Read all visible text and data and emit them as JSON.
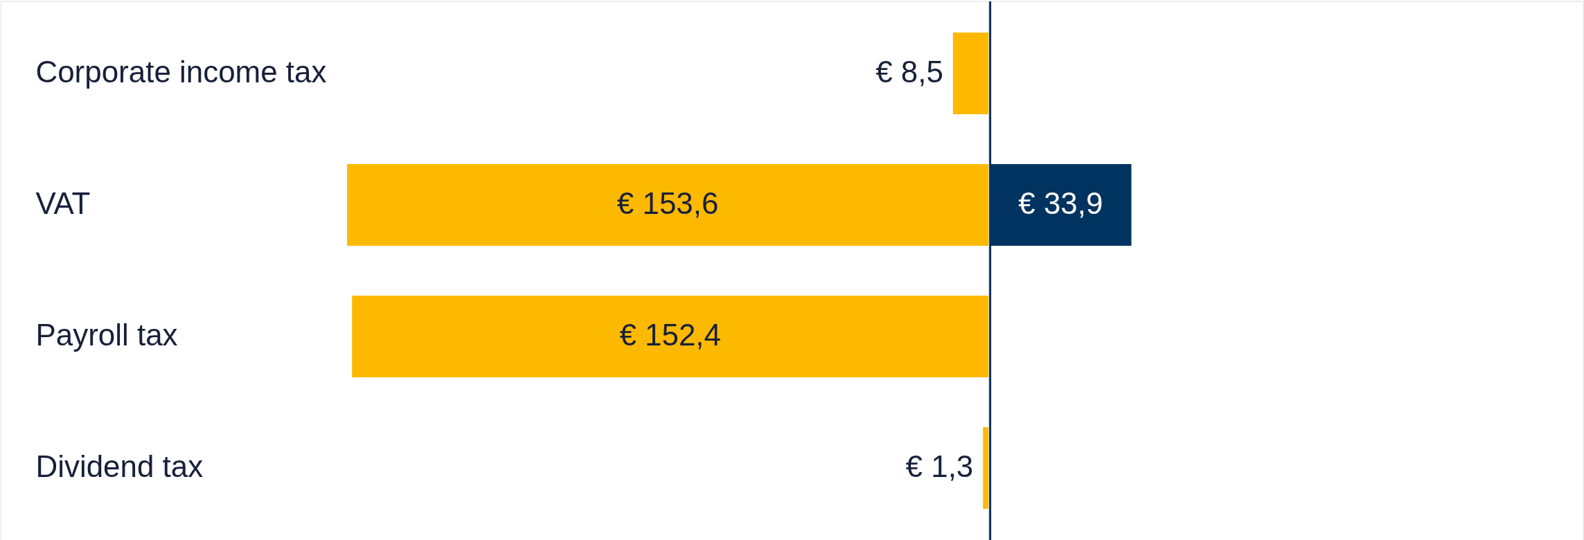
{
  "chart_data": [
    {
      "type": "bar",
      "orientation": "horizontal",
      "tick_labels": "y",
      "grid": false,
      "categories": [
        "Corporate income tax",
        "VAT",
        "Payroll tax",
        "Dividend tax"
      ],
      "series": [
        {
          "color": "#fdb900",
          "values": [
            8.5,
            153.6,
            152.4,
            1.3
          ],
          "value_labels": [
            "€ 8,5",
            "€ 153,6",
            "€ 152,4",
            "€ 1,3"
          ]
        }
      ]
    },
    {
      "type": "bar",
      "orientation": "horizontal",
      "grid": false,
      "categories": [
        null,
        null,
        null,
        null
      ],
      "series": [
        {
          "color": "#00335f",
          "values": [
            null,
            33.9,
            null,
            null
          ],
          "value_labels": [
            null,
            "€ 33,9",
            null,
            null
          ]
        }
      ]
    }
  ]
}
